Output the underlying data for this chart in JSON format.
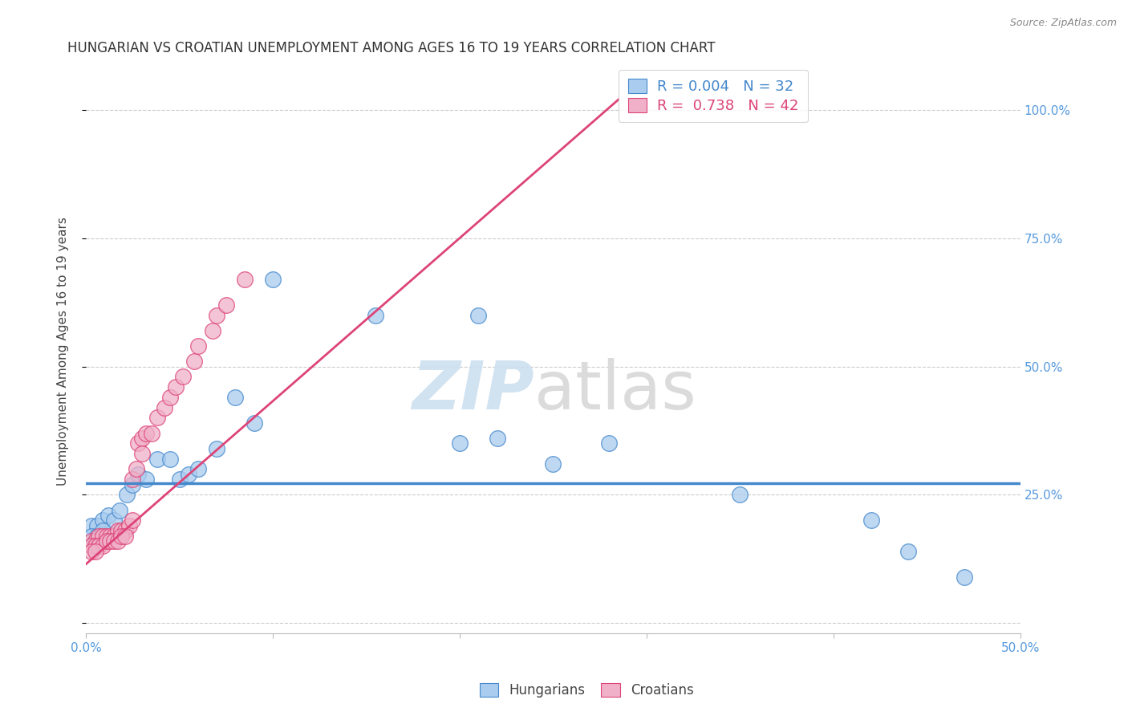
{
  "title": "HUNGARIAN VS CROATIAN UNEMPLOYMENT AMONG AGES 16 TO 19 YEARS CORRELATION CHART",
  "source": "Source: ZipAtlas.com",
  "ylabel": "Unemployment Among Ages 16 to 19 years",
  "xlim": [
    0.0,
    0.5
  ],
  "ylim": [
    -0.02,
    1.08
  ],
  "yticks": [
    0.0,
    0.25,
    0.5,
    0.75,
    1.0
  ],
  "ytick_labels": [
    "",
    "25.0%",
    "50.0%",
    "75.0%",
    "100.0%"
  ],
  "xticks": [
    0.0,
    0.1,
    0.2,
    0.3,
    0.4,
    0.5
  ],
  "xtick_labels": [
    "0.0%",
    "",
    "",
    "",
    "",
    "50.0%"
  ],
  "r_hungarian": 0.004,
  "n_hungarian": 32,
  "r_croatian": 0.738,
  "n_croatian": 42,
  "hungarian_color": "#aaccee",
  "croatian_color": "#f0b0c8",
  "line_hungarian_color": "#4488cc",
  "line_croatian_color": "#dd4477",
  "watermark_zip": "ZIP",
  "watermark_atlas": "atlas",
  "background_color": "#ffffff",
  "hungarian_line_y": 0.272,
  "croatian_line_x0": 0.0,
  "croatian_line_y0": 0.115,
  "croatian_line_x1": 0.285,
  "croatian_line_y1": 1.02,
  "hungarian_points": [
    [
      0.003,
      0.19
    ],
    [
      0.006,
      0.19
    ],
    [
      0.009,
      0.2
    ],
    [
      0.012,
      0.21
    ],
    [
      0.015,
      0.2
    ],
    [
      0.018,
      0.22
    ],
    [
      0.022,
      0.25
    ],
    [
      0.025,
      0.27
    ],
    [
      0.028,
      0.29
    ],
    [
      0.032,
      0.28
    ],
    [
      0.038,
      0.32
    ],
    [
      0.045,
      0.32
    ],
    [
      0.05,
      0.28
    ],
    [
      0.055,
      0.29
    ],
    [
      0.06,
      0.3
    ],
    [
      0.07,
      0.34
    ],
    [
      0.08,
      0.44
    ],
    [
      0.09,
      0.39
    ],
    [
      0.1,
      0.67
    ],
    [
      0.155,
      0.6
    ],
    [
      0.21,
      0.6
    ],
    [
      0.2,
      0.35
    ],
    [
      0.22,
      0.36
    ],
    [
      0.25,
      0.31
    ],
    [
      0.28,
      0.35
    ],
    [
      0.35,
      0.25
    ],
    [
      0.42,
      0.2
    ],
    [
      0.44,
      0.14
    ],
    [
      0.47,
      0.09
    ],
    [
      0.003,
      0.17
    ],
    [
      0.006,
      0.17
    ],
    [
      0.009,
      0.18
    ]
  ],
  "croatian_points": [
    [
      0.003,
      0.16
    ],
    [
      0.005,
      0.16
    ],
    [
      0.007,
      0.17
    ],
    [
      0.009,
      0.17
    ],
    [
      0.011,
      0.17
    ],
    [
      0.013,
      0.17
    ],
    [
      0.015,
      0.17
    ],
    [
      0.017,
      0.18
    ],
    [
      0.019,
      0.18
    ],
    [
      0.021,
      0.18
    ],
    [
      0.023,
      0.19
    ],
    [
      0.025,
      0.2
    ],
    [
      0.003,
      0.15
    ],
    [
      0.005,
      0.15
    ],
    [
      0.007,
      0.15
    ],
    [
      0.009,
      0.15
    ],
    [
      0.011,
      0.16
    ],
    [
      0.013,
      0.16
    ],
    [
      0.015,
      0.16
    ],
    [
      0.017,
      0.16
    ],
    [
      0.019,
      0.17
    ],
    [
      0.021,
      0.17
    ],
    [
      0.003,
      0.14
    ],
    [
      0.005,
      0.14
    ],
    [
      0.028,
      0.35
    ],
    [
      0.03,
      0.36
    ],
    [
      0.032,
      0.37
    ],
    [
      0.038,
      0.4
    ],
    [
      0.042,
      0.42
    ],
    [
      0.045,
      0.44
    ],
    [
      0.048,
      0.46
    ],
    [
      0.052,
      0.48
    ],
    [
      0.058,
      0.51
    ],
    [
      0.06,
      0.54
    ],
    [
      0.068,
      0.57
    ],
    [
      0.07,
      0.6
    ],
    [
      0.075,
      0.62
    ],
    [
      0.085,
      0.67
    ],
    [
      0.025,
      0.28
    ],
    [
      0.027,
      0.3
    ],
    [
      0.03,
      0.33
    ],
    [
      0.035,
      0.37
    ]
  ],
  "title_fontsize": 12,
  "label_fontsize": 11,
  "tick_fontsize": 11,
  "legend_fontsize": 12
}
